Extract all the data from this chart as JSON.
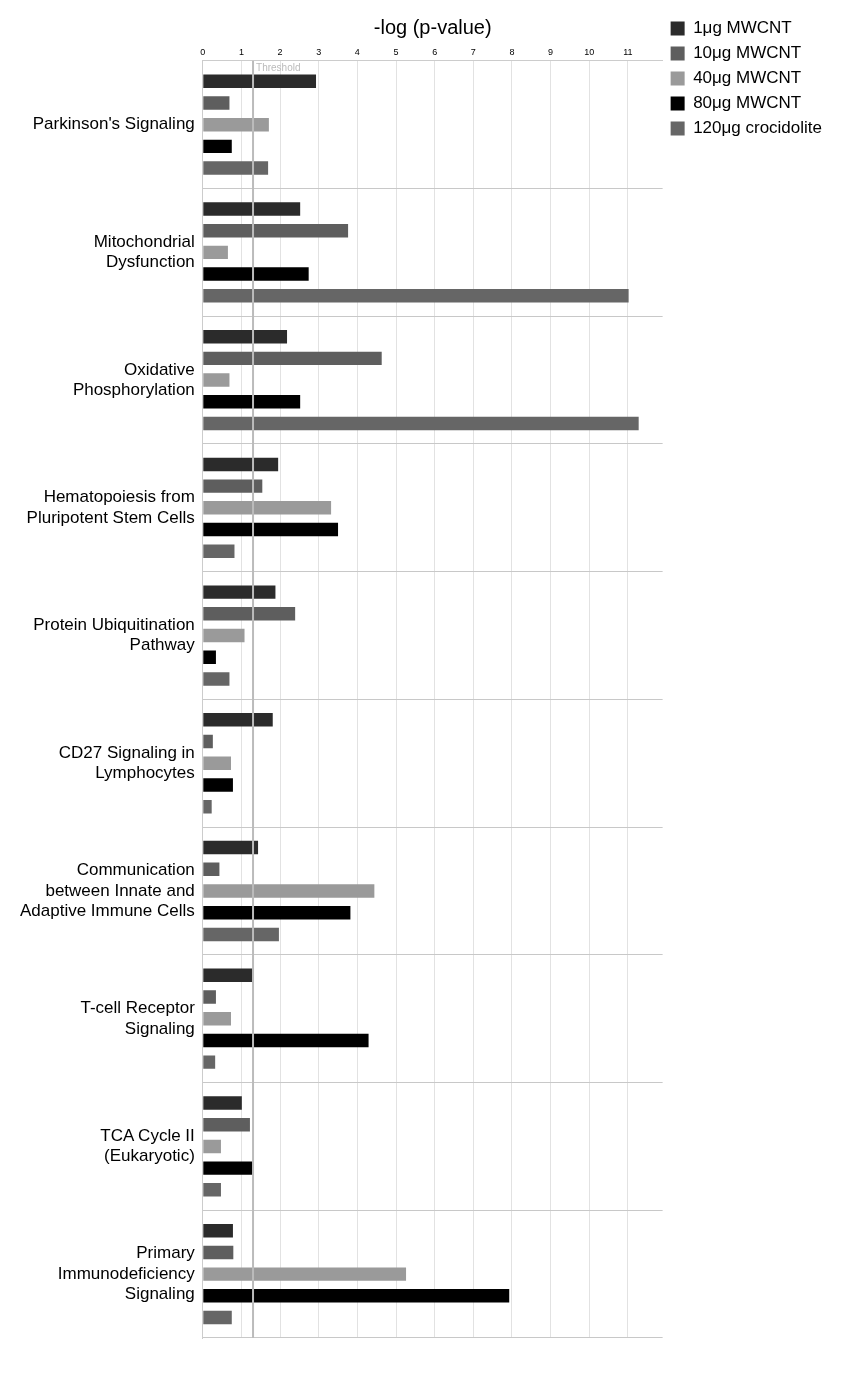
{
  "chart_data": {
    "type": "bar",
    "orientation": "horizontal",
    "xlabel": "-log (p-value)",
    "categories": [
      "Parkinson's Signaling",
      "Mitochondrial Dysfunction",
      "Oxidative Phosphorylation",
      "Hematopoiesis from Pluripotent Stem Cells",
      "Protein Ubiquitination Pathway",
      "CD27 Signaling in Lymphocytes",
      "Communication between Innate and Adaptive Immune Cells",
      "T-cell Receptor Signaling",
      "TCA Cycle II (Eukaryotic)",
      "Primary Immunodeficiency Signaling"
    ],
    "series": [
      {
        "name": "1μg MWCNT",
        "color": "#2b2b2b",
        "values": [
          2.93,
          2.52,
          2.18,
          1.95,
          1.88,
          1.81,
          1.43,
          1.29,
          1.01,
          0.78
        ]
      },
      {
        "name": "10μg MWCNT",
        "color": "#5e5e5e",
        "values": [
          0.69,
          3.76,
          4.63,
          1.54,
          2.39,
          0.26,
          0.43,
          0.34,
          1.22,
          0.79
        ]
      },
      {
        "name": "40μg MWCNT",
        "color": "#9a9a9a",
        "values": [
          1.71,
          0.65,
          0.69,
          3.32,
          1.08,
          0.73,
          4.44,
          0.73,
          0.47,
          5.26
        ]
      },
      {
        "name": "80μg MWCNT",
        "color": "#000000",
        "values": [
          0.75,
          2.74,
          2.52,
          3.5,
          0.34,
          0.78,
          3.82,
          4.29,
          1.29,
          7.93
        ]
      },
      {
        "name": "120μg crocidolite",
        "color": "#666666",
        "values": [
          1.69,
          11.02,
          11.28,
          0.82,
          0.69,
          0.23,
          1.97,
          0.32,
          0.47,
          0.75
        ]
      }
    ],
    "xlim": [
      0,
      11.9
    ],
    "xticks": [
      0,
      1,
      2,
      3,
      4,
      5,
      6,
      7,
      8,
      9,
      10,
      11
    ],
    "ref_lines": [
      {
        "axis": "x",
        "value": 1.3,
        "label": "Threshold",
        "color": "#bbbbbb"
      }
    ],
    "grid": true,
    "legend": "top right"
  }
}
